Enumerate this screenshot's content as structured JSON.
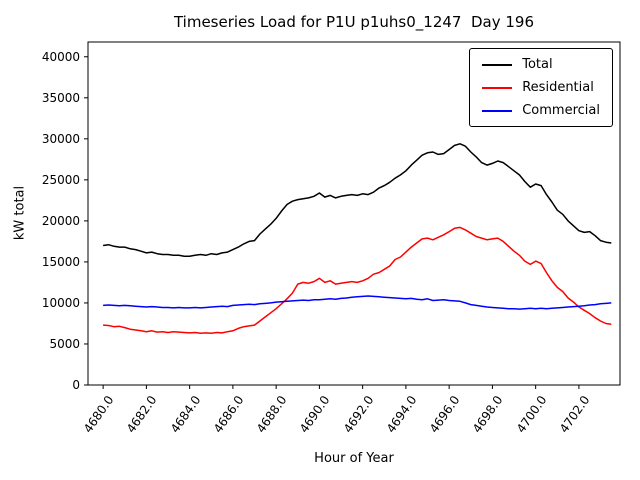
{
  "chart_data": {
    "type": "line",
    "title": "Timeseries Load for P1U p1uhs0_1247  Day 196",
    "xlabel": "Hour of Year",
    "ylabel": "kW total",
    "xlim": [
      4679.3,
      4703.9
    ],
    "ylim": [
      0,
      41800
    ],
    "x_start": 4680.0,
    "x_step": 0.25,
    "xticks": [
      4680.0,
      4682.0,
      4684.0,
      4686.0,
      4688.0,
      4690.0,
      4692.0,
      4694.0,
      4696.0,
      4698.0,
      4700.0,
      4702.0
    ],
    "yticks": [
      0,
      5000,
      10000,
      15000,
      20000,
      25000,
      30000,
      35000,
      40000
    ],
    "grid": false,
    "legend": {
      "position": "upper right"
    },
    "series": [
      {
        "name": "Total",
        "color": "#000000",
        "values": [
          17000,
          17100,
          16900,
          16800,
          16800,
          16600,
          16500,
          16300,
          16100,
          16200,
          16000,
          15900,
          15900,
          15800,
          15800,
          15700,
          15700,
          15800,
          15900,
          15800,
          16000,
          15900,
          16100,
          16200,
          16500,
          16800,
          17200,
          17500,
          17600,
          18400,
          19000,
          19600,
          20300,
          21200,
          22000,
          22400,
          22600,
          22700,
          22800,
          23000,
          23400,
          22900,
          23100,
          22800,
          23000,
          23100,
          23200,
          23100,
          23300,
          23200,
          23500,
          24000,
          24300,
          24700,
          25200,
          25600,
          26100,
          26800,
          27400,
          28000,
          28300,
          28400,
          28100,
          28200,
          28700,
          29200,
          29400,
          29100,
          28400,
          27800,
          27100,
          26800,
          27000,
          27300,
          27100,
          26600,
          26100,
          25600,
          24800,
          24100,
          24500,
          24300,
          23200,
          22300,
          21300,
          20800,
          20000,
          19400,
          18800,
          18600,
          18700,
          18200,
          17600,
          17400,
          17300
        ]
      },
      {
        "name": "Residential",
        "color": "#ff0000",
        "values": [
          7300,
          7250,
          7100,
          7150,
          7000,
          6800,
          6700,
          6600,
          6500,
          6600,
          6450,
          6500,
          6400,
          6500,
          6450,
          6400,
          6350,
          6400,
          6300,
          6350,
          6300,
          6400,
          6350,
          6500,
          6600,
          6900,
          7100,
          7200,
          7300,
          7800,
          8300,
          8800,
          9300,
          9900,
          10500,
          11200,
          12300,
          12500,
          12400,
          12600,
          13000,
          12500,
          12700,
          12300,
          12400,
          12500,
          12600,
          12500,
          12700,
          13000,
          13500,
          13700,
          14100,
          14500,
          15300,
          15600,
          16200,
          16800,
          17300,
          17800,
          17900,
          17700,
          18000,
          18300,
          18700,
          19100,
          19200,
          18900,
          18500,
          18100,
          17900,
          17700,
          17800,
          17900,
          17500,
          16900,
          16300,
          15800,
          15100,
          14700,
          15100,
          14800,
          13700,
          12700,
          11900,
          11400,
          10600,
          10100,
          9500,
          9100,
          8700,
          8200,
          7800,
          7500,
          7400
        ]
      },
      {
        "name": "Commercial",
        "color": "#0000ff",
        "values": [
          9700,
          9750,
          9700,
          9650,
          9700,
          9650,
          9600,
          9550,
          9500,
          9550,
          9500,
          9450,
          9450,
          9400,
          9450,
          9400,
          9400,
          9450,
          9400,
          9450,
          9500,
          9550,
          9600,
          9550,
          9700,
          9750,
          9800,
          9850,
          9800,
          9900,
          9950,
          10000,
          10100,
          10150,
          10200,
          10250,
          10300,
          10350,
          10300,
          10400,
          10400,
          10450,
          10500,
          10450,
          10550,
          10600,
          10700,
          10750,
          10800,
          10850,
          10800,
          10750,
          10700,
          10650,
          10600,
          10550,
          10500,
          10550,
          10450,
          10400,
          10500,
          10300,
          10350,
          10400,
          10300,
          10250,
          10200,
          10000,
          9800,
          9700,
          9600,
          9500,
          9450,
          9400,
          9350,
          9300,
          9300,
          9250,
          9300,
          9350,
          9300,
          9350,
          9300,
          9350,
          9400,
          9450,
          9500,
          9550,
          9600,
          9650,
          9750,
          9800,
          9900,
          9950,
          10000
        ]
      }
    ]
  }
}
